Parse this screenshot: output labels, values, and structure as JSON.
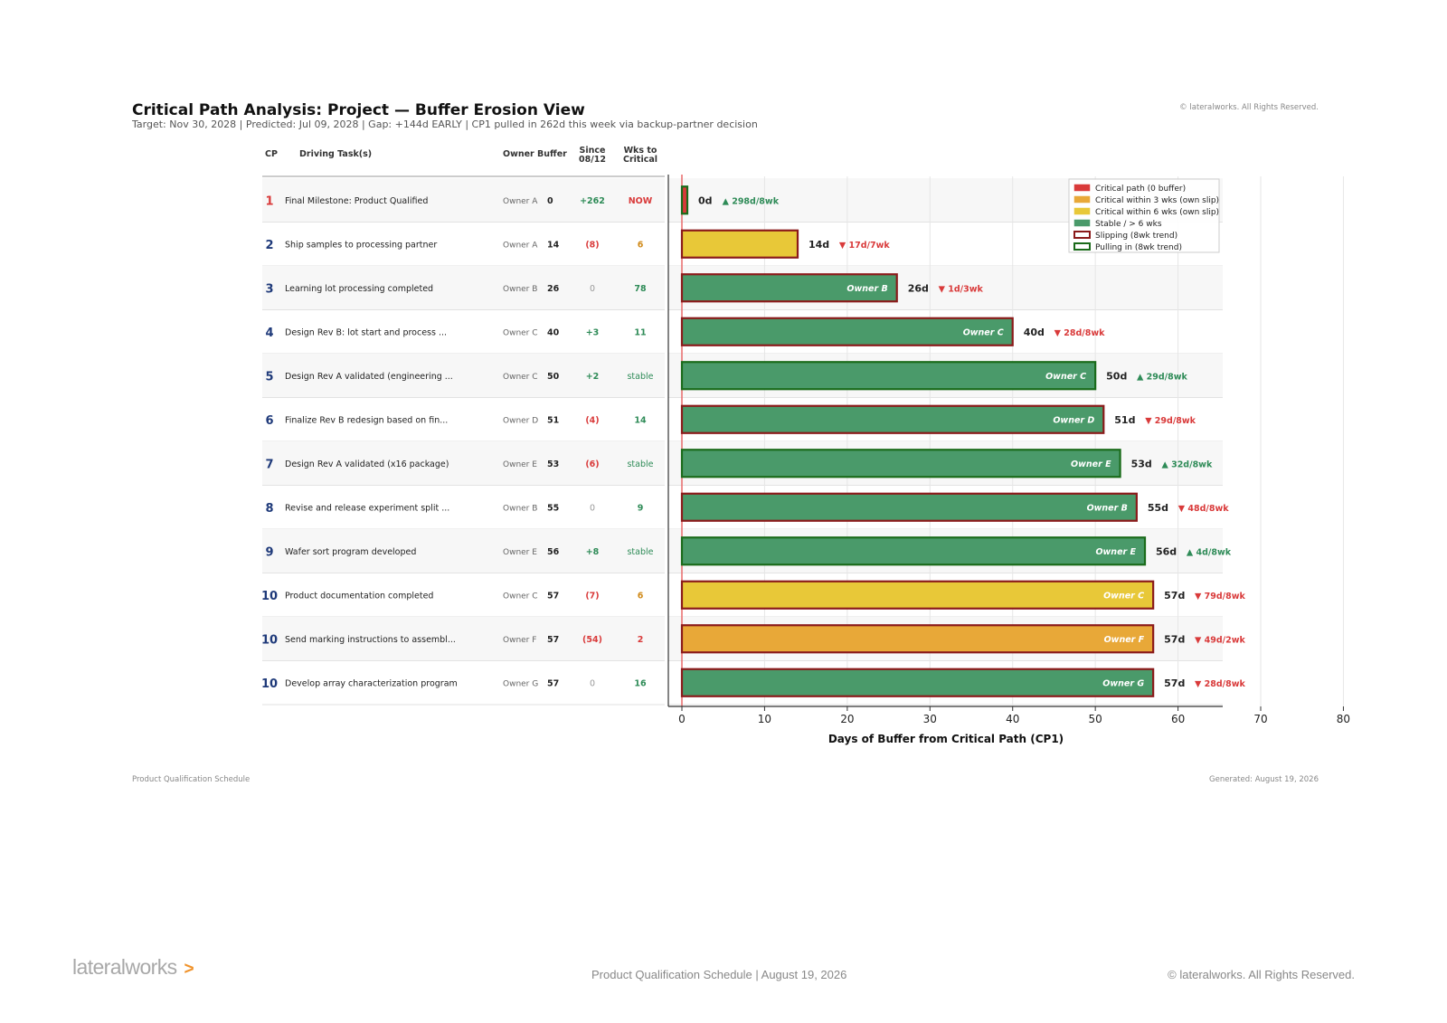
{
  "header": {
    "title": "Critical Path Analysis: Project — Buffer Erosion View",
    "subtitle": "Target: Nov 30, 2028   |   Predicted: Jul 09, 2028   |   Gap: +144d EARLY   |   CP1 pulled in 262d this week via backup-partner decision",
    "copyright": "© lateralworks. All Rights Reserved."
  },
  "table": {
    "headers": {
      "cp": "CP",
      "task": "Driving Task(s)",
      "owner": "Owner",
      "buffer": "Buffer",
      "since_l1": "Since",
      "since_l2": "08/12",
      "wks_l1": "Wks to",
      "wks_l2": "Critical"
    }
  },
  "chart_data": {
    "type": "bar",
    "orientation": "horizontal",
    "xlabel": "Days of Buffer from Critical Path (CP1)",
    "xlim": [
      0,
      80
    ],
    "xticks": [
      "0",
      "10",
      "20",
      "30",
      "40",
      "50",
      "60",
      "70",
      "80"
    ],
    "grid": true,
    "legend_position": "top-right",
    "legend": [
      {
        "label": "Critical path (0 buffer)",
        "fill": "#d93a3a",
        "border": "#d93a3a"
      },
      {
        "label": "Critical within 3 wks (own slip)",
        "fill": "#e8a838",
        "border": "#e8a838"
      },
      {
        "label": "Critical within 6 wks (own slip)",
        "fill": "#e8c838",
        "border": "#e8c838"
      },
      {
        "label": "Stable / > 6 wks",
        "fill": "#4a9a6a",
        "border": "#4a9a6a"
      },
      {
        "label": "Slipping (8wk trend)",
        "fill": "#ffffff",
        "border": "#8b1a1a"
      },
      {
        "label": "Pulling in (8wk trend)",
        "fill": "#ffffff",
        "border": "#1a6b1a"
      }
    ],
    "colors": {
      "critical": "#d93a3a",
      "within3": "#e8a838",
      "within6": "#e8c838",
      "stable": "#4a9a6a",
      "slipping_border": "#8b1a1a",
      "pulling_border": "#1a6b1a",
      "cp_number": "#1f3a7a",
      "cp_number_critical": "#d93a3a",
      "positive": "#2e8b57",
      "negative": "#d93a3a",
      "neutral": "#999999",
      "wks_warning": "#d08a1a"
    },
    "rows": [
      {
        "cp": "1",
        "task": "Final Milestone: Product Qualified",
        "owner": "Owner A",
        "buffer": 0,
        "buffer_label": "0",
        "since": "+262",
        "since_type": "pos",
        "wks": "NOW",
        "wks_type": "now",
        "category": "critical",
        "trend": "pulling",
        "bar_label": "0d",
        "trend_label": "▲ 298d/8wk",
        "inbar_owner": ""
      },
      {
        "cp": "2",
        "task": "Ship samples to processing partner",
        "owner": "Owner A",
        "buffer": 14,
        "buffer_label": "14",
        "since": "(8)",
        "since_type": "neg",
        "wks": "6",
        "wks_type": "warn",
        "category": "within6",
        "trend": "slipping",
        "bar_label": "14d",
        "trend_label": "▼ 17d/7wk",
        "inbar_owner": ""
      },
      {
        "cp": "3",
        "task": "Learning lot processing completed",
        "owner": "Owner B",
        "buffer": 26,
        "buffer_label": "26",
        "since": "0",
        "since_type": "zero",
        "wks": "78",
        "wks_type": "ok",
        "category": "stable",
        "trend": "slipping",
        "bar_label": "26d",
        "trend_label": "▼ 1d/3wk",
        "inbar_owner": "Owner B"
      },
      {
        "cp": "4",
        "task": "Design Rev B: lot start and process ...",
        "owner": "Owner C",
        "buffer": 40,
        "buffer_label": "40",
        "since": "+3",
        "since_type": "pos",
        "wks": "11",
        "wks_type": "ok",
        "category": "stable",
        "trend": "slipping",
        "bar_label": "40d",
        "trend_label": "▼ 28d/8wk",
        "inbar_owner": "Owner C"
      },
      {
        "cp": "5",
        "task": "Design Rev A validated (engineering ...",
        "owner": "Owner C",
        "buffer": 50,
        "buffer_label": "50",
        "since": "+2",
        "since_type": "pos",
        "wks": "stable",
        "wks_type": "stable",
        "category": "stable",
        "trend": "pulling",
        "bar_label": "50d",
        "trend_label": "▲ 29d/8wk",
        "inbar_owner": "Owner C"
      },
      {
        "cp": "6",
        "task": "Finalize Rev B redesign based on fin...",
        "owner": "Owner D",
        "buffer": 51,
        "buffer_label": "51",
        "since": "(4)",
        "since_type": "neg",
        "wks": "14",
        "wks_type": "ok",
        "category": "stable",
        "trend": "slipping",
        "bar_label": "51d",
        "trend_label": "▼ 29d/8wk",
        "inbar_owner": "Owner D"
      },
      {
        "cp": "7",
        "task": "Design Rev A validated (x16 package)",
        "owner": "Owner E",
        "buffer": 53,
        "buffer_label": "53",
        "since": "(6)",
        "since_type": "neg",
        "wks": "stable",
        "wks_type": "stable",
        "category": "stable",
        "trend": "pulling",
        "bar_label": "53d",
        "trend_label": "▲ 32d/8wk",
        "inbar_owner": "Owner E"
      },
      {
        "cp": "8",
        "task": "Revise and release experiment split ...",
        "owner": "Owner B",
        "buffer": 55,
        "buffer_label": "55",
        "since": "0",
        "since_type": "zero",
        "wks": "9",
        "wks_type": "ok",
        "category": "stable",
        "trend": "slipping",
        "bar_label": "55d",
        "trend_label": "▼ 48d/8wk",
        "inbar_owner": "Owner B"
      },
      {
        "cp": "9",
        "task": "Wafer sort program developed",
        "owner": "Owner E",
        "buffer": 56,
        "buffer_label": "56",
        "since": "+8",
        "since_type": "pos",
        "wks": "stable",
        "wks_type": "stable",
        "category": "stable",
        "trend": "pulling",
        "bar_label": "56d",
        "trend_label": "▲ 4d/8wk",
        "inbar_owner": "Owner E"
      },
      {
        "cp": "10",
        "task": "Product documentation completed",
        "owner": "Owner C",
        "buffer": 57,
        "buffer_label": "57",
        "since": "(7)",
        "since_type": "neg",
        "wks": "6",
        "wks_type": "warn",
        "category": "within6",
        "trend": "slipping",
        "bar_label": "57d",
        "trend_label": "▼ 79d/8wk",
        "inbar_owner": "Owner C"
      },
      {
        "cp": "10",
        "task": "Send marking instructions to assembl...",
        "owner": "Owner F",
        "buffer": 57,
        "buffer_label": "57",
        "since": "(54)",
        "since_type": "neg",
        "wks": "2",
        "wks_type": "urgent",
        "category": "within3",
        "trend": "slipping",
        "bar_label": "57d",
        "trend_label": "▼ 49d/2wk",
        "inbar_owner": "Owner F"
      },
      {
        "cp": "10",
        "task": "Develop array characterization program",
        "owner": "Owner G",
        "buffer": 57,
        "buffer_label": "57",
        "since": "0",
        "since_type": "zero",
        "wks": "16",
        "wks_type": "ok",
        "category": "stable",
        "trend": "slipping",
        "bar_label": "57d",
        "trend_label": "▼ 28d/8wk",
        "inbar_owner": "Owner G"
      }
    ]
  },
  "footer": {
    "left_note": "Product Qualification Schedule",
    "right_note": "Generated: August 19, 2026",
    "logo_text": "lateralworks",
    "logo_arrow": ">",
    "center": "Product Qualification Schedule  |  August 19, 2026",
    "right": "© lateralworks. All Rights Reserved."
  }
}
